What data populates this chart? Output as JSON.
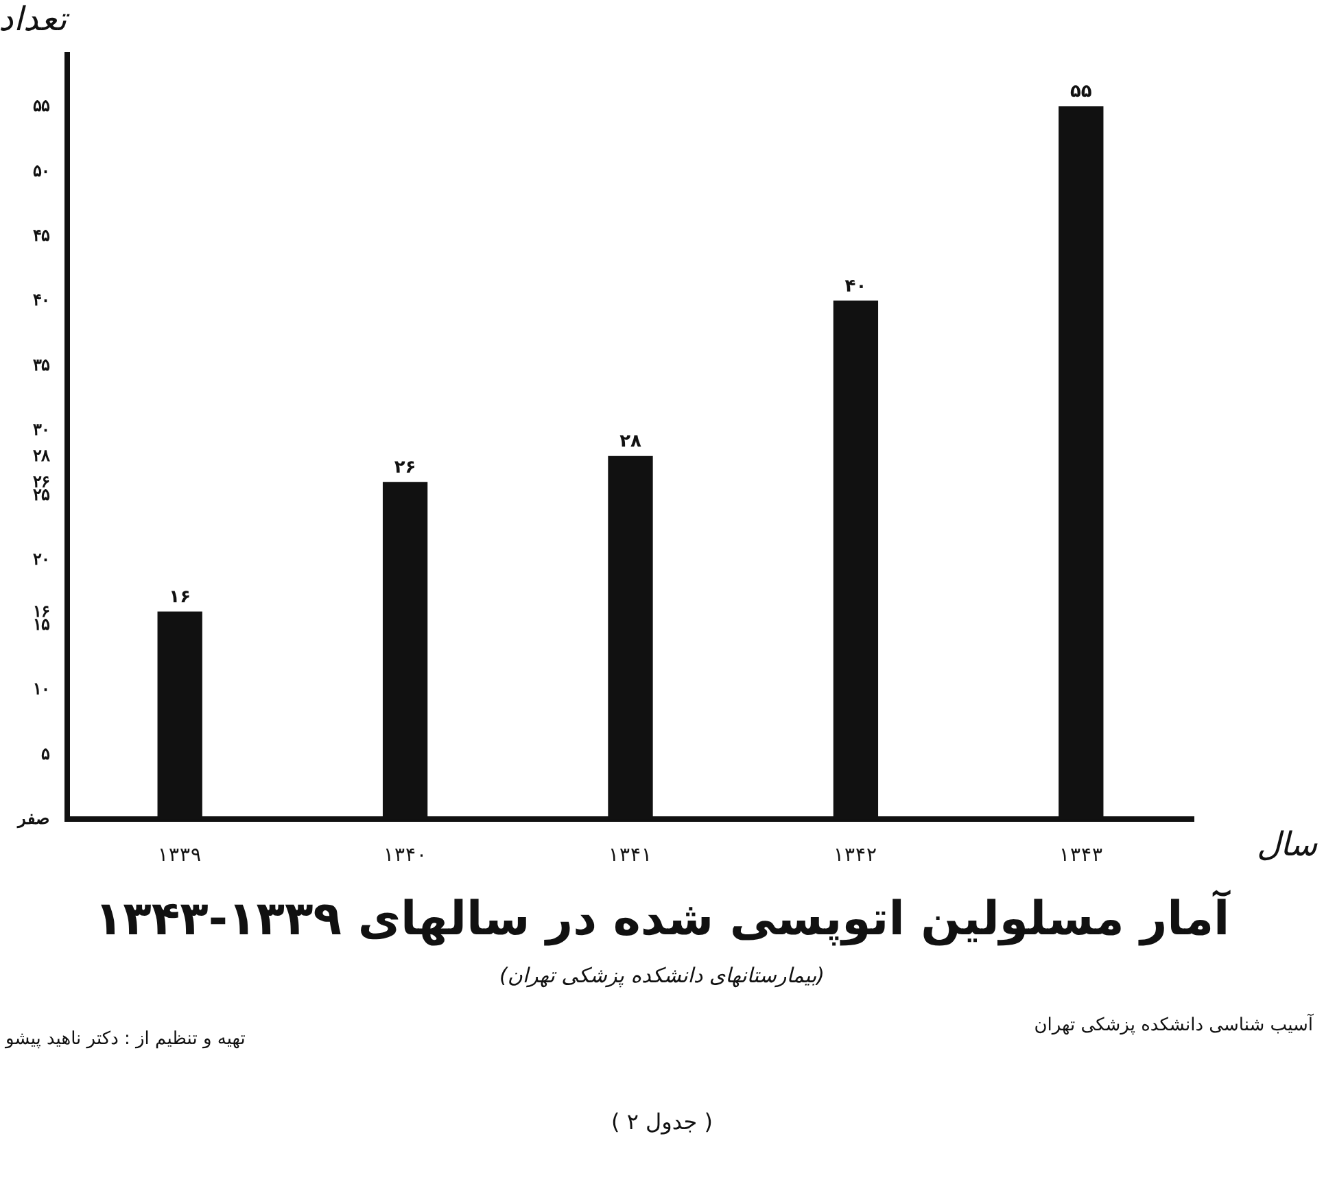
{
  "chart_data": {
    "type": "bar",
    "title": "آمار مسلولین اتوپسی شده در سالهای ۱۳۳۹-۱۳۴۳",
    "subtitle": "(بیمارستانهای دانشکده پزشکی تهران)",
    "xlabel": "سال",
    "ylabel": "تعداد",
    "categories": [
      "۱۳۳۹",
      "۱۳۴۰",
      "۱۳۴۱",
      "۱۳۴۲",
      "۱۳۴۳"
    ],
    "values": [
      16,
      26,
      28,
      40,
      55
    ],
    "value_labels": [
      "۱۶",
      "۲۶",
      "۲۸",
      "۴۰",
      "۵۵"
    ],
    "color": "#111111",
    "ylim": [
      0,
      59
    ],
    "yticks": [
      {
        "value": 0,
        "label": "صفر"
      },
      {
        "value": 5,
        "label": "۵"
      },
      {
        "value": 10,
        "label": "۱۰"
      },
      {
        "value": 15,
        "label": "۱۵"
      },
      {
        "value": 16,
        "label": "۱۶"
      },
      {
        "value": 20,
        "label": "۲۰"
      },
      {
        "value": 25,
        "label": "۲۵"
      },
      {
        "value": 26,
        "label": "۲۶"
      },
      {
        "value": 28,
        "label": "۲۸"
      },
      {
        "value": 30,
        "label": "۳۰"
      },
      {
        "value": 35,
        "label": "۳۵"
      },
      {
        "value": 40,
        "label": "۴۰"
      },
      {
        "value": 45,
        "label": "۴۵"
      },
      {
        "value": 50,
        "label": "۵۰"
      },
      {
        "value": 55,
        "label": "۵۵"
      }
    ],
    "grid": false,
    "legend": false,
    "annotations": [
      "آسیب شناسی دانشکده پزشکی تهران",
      "تهیه و تنظیم از : دکتر ناهید پیشو",
      "( جدول ۲ )"
    ]
  }
}
